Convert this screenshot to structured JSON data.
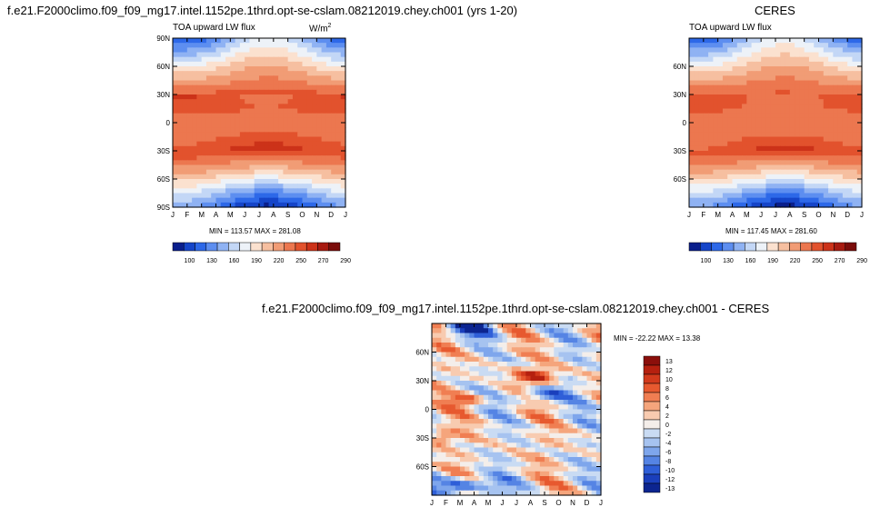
{
  "panels": [
    {
      "id": "model",
      "title": "f.e21.F2000climo.f09_f09_mg17.intel.1152pe.1thrd.opt-se-cslam.08212019.chey.ch001 (yrs 1-20)",
      "subtitle_left": "TOA upward LW flux",
      "units": "W/m",
      "units_sup": "2",
      "minmax": "MIN = 113.57 MAX = 281.08"
    },
    {
      "id": "obs",
      "title": "CERES",
      "subtitle_left": "TOA upward LW flux",
      "minmax": "MIN = 117.45 MAX = 281.60"
    },
    {
      "id": "diff",
      "title": "f.e21.F2000climo.f09_f09_mg17.intel.1152pe.1thrd.opt-se-cslam.08212019.chey.ch001 - CERES",
      "minmax": "MIN = -22.22 MAX =  13.38"
    }
  ],
  "chart_data": [
    {
      "type": "heatmap",
      "title": "f.e21.F2000climo.f09_f09_mg17.intel.1152pe.1thrd.opt-se-cslam.08212019.chey.ch001 (yrs 1-20)",
      "subtitle": "TOA upward LW flux",
      "units": "W/m2",
      "x_ticks": [
        "J",
        "F",
        "M",
        "A",
        "M",
        "J",
        "J",
        "A",
        "S",
        "O",
        "N",
        "D",
        "J"
      ],
      "y_ticks": [
        "90N",
        "60N",
        "30N",
        "0",
        "30S",
        "60S",
        "90S"
      ],
      "ylim": [
        -90,
        90
      ],
      "min": 113.57,
      "max": 281.08,
      "colorbar_levels": [
        100,
        130,
        160,
        190,
        220,
        250,
        270,
        290
      ],
      "colorbar_labels": [
        "100",
        "130",
        "160",
        "190",
        "220",
        "250",
        "270",
        "290"
      ],
      "colorbar_colors": [
        "#0a1f8c",
        "#1545c9",
        "#2d68e8",
        "#5d8ef0",
        "#8fb2f3",
        "#c3d7f6",
        "#edf2f8",
        "#fbe1cf",
        "#f6bfa0",
        "#f19c75",
        "#ec774f",
        "#e2522d",
        "#cc3219",
        "#a71a10",
        "#7a0c0a"
      ],
      "zonal_profile_lat": [
        90,
        75,
        60,
        45,
        30,
        15,
        0,
        -15,
        -30,
        -45,
        -60,
        -75,
        -90
      ],
      "zonal_profile_value": [
        155,
        185,
        215,
        240,
        262,
        262,
        248,
        258,
        268,
        242,
        205,
        165,
        130
      ]
    },
    {
      "type": "heatmap",
      "title": "CERES",
      "subtitle": "TOA upward LW flux",
      "x_ticks": [
        "J",
        "F",
        "M",
        "A",
        "M",
        "J",
        "J",
        "A",
        "S",
        "O",
        "N",
        "D",
        "J"
      ],
      "y_ticks": [
        "60N",
        "30N",
        "0",
        "30S",
        "60S"
      ],
      "ylim": [
        -90,
        90
      ],
      "min": 117.45,
      "max": 281.6,
      "colorbar_levels": [
        100,
        130,
        160,
        190,
        220,
        250,
        270,
        290
      ],
      "colorbar_labels": [
        "100",
        "130",
        "160",
        "190",
        "220",
        "250",
        "270",
        "290"
      ],
      "zonal_profile_lat": [
        90,
        75,
        60,
        45,
        30,
        15,
        0,
        -15,
        -30,
        -45,
        -60,
        -75,
        -90
      ],
      "zonal_profile_value": [
        158,
        187,
        216,
        240,
        260,
        258,
        246,
        256,
        266,
        240,
        203,
        163,
        128
      ]
    },
    {
      "type": "heatmap",
      "title": "f.e21.F2000climo.f09_f09_mg17.intel.1152pe.1thrd.opt-se-cslam.08212019.chey.ch001 - CERES",
      "x_ticks": [
        "J",
        "F",
        "M",
        "A",
        "M",
        "J",
        "J",
        "A",
        "S",
        "O",
        "N",
        "D",
        "J"
      ],
      "y_ticks": [
        "60N",
        "30N",
        "0",
        "30S",
        "60S"
      ],
      "ylim": [
        -90,
        90
      ],
      "min": -22.22,
      "max": 13.38,
      "colorbar_levels": [
        13,
        12,
        10,
        8,
        6,
        4,
        2,
        0,
        -2,
        -4,
        -6,
        -8,
        -10,
        -12,
        -13
      ],
      "colorbar_labels": [
        "13",
        "12",
        "10",
        "8",
        "6",
        "4",
        "2",
        "0",
        "-2",
        "-4",
        "-6",
        "-8",
        "-10",
        "-12",
        "-13"
      ],
      "colorbar_colors": [
        "#8b0f0b",
        "#b5200f",
        "#d23a1c",
        "#e7592f",
        "#f07e52",
        "#f5a57c",
        "#f8cbb0",
        "#f4eeea",
        "#c9dbf3",
        "#a6c3f0",
        "#7ea6ec",
        "#5584e4",
        "#2f5fd8",
        "#1a3fbc",
        "#0c2590"
      ]
    }
  ]
}
